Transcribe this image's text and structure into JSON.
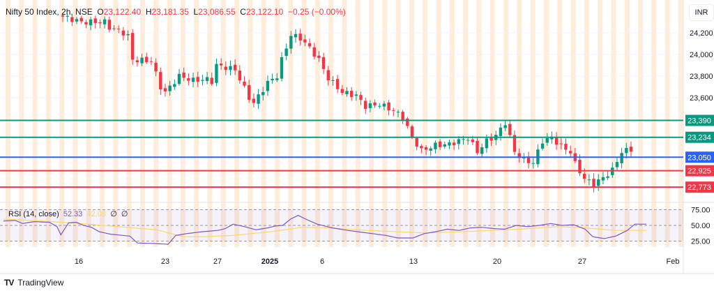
{
  "header": {
    "symbol": "Nifty 50 Index, 2h, NSE",
    "o_label": "O",
    "o": "23,122.40",
    "h_label": "H",
    "h": "23,181.35",
    "l_label": "L",
    "l": "23,086.55",
    "c_label": "C",
    "c": "23,122.10",
    "change": "−0.25 (−0.00%)"
  },
  "currency": "INR",
  "rsi": {
    "label": "RSI (14, close)",
    "value": "52.33",
    "ma": "42.08",
    "extra1": "∅",
    "extra2": "∅"
  },
  "branding": "TradingView",
  "colors": {
    "up": "#089981",
    "down": "#f23645",
    "green_line": "#089981",
    "blue_line": "#2962ff",
    "red_line": "#f23645",
    "rsi": "#7e57c2",
    "rsi_ma": "#f7d96a",
    "stripe": "#fde7cf"
  },
  "chart_data": {
    "type": "candlestick",
    "price_ylim": [
      22700,
      24330
    ],
    "price_ticks": [
      "24,200",
      "24,000",
      "23,800",
      "23,600"
    ],
    "price_tick_values": [
      24200,
      24000,
      23800,
      23600
    ],
    "levels": [
      {
        "value": 23390,
        "label": "23,390",
        "color": "#089981"
      },
      {
        "value": 23234,
        "label": "23,234",
        "color": "#089981"
      },
      {
        "value": 23050,
        "label": "23,050",
        "color": "#2962ff"
      },
      {
        "value": 22925,
        "label": "22,925",
        "color": "#f23645"
      },
      {
        "value": 22773,
        "label": "22,773",
        "color": "#f23645"
      }
    ],
    "x_ticks": [
      "16",
      "23",
      "27",
      "2025",
      "6",
      "13",
      "20",
      "27",
      "Feb"
    ],
    "price_path_approx": [
      [
        0,
        24350
      ],
      [
        4,
        24300
      ],
      [
        9,
        24300
      ],
      [
        10,
        24250
      ],
      [
        13,
        24200
      ],
      [
        14,
        24170
      ],
      [
        15,
        23950
      ],
      [
        19,
        23940
      ],
      [
        21,
        23700
      ],
      [
        22,
        23650
      ],
      [
        25,
        23800
      ],
      [
        28,
        23760
      ],
      [
        31,
        23770
      ],
      [
        32,
        23750
      ],
      [
        33,
        23900
      ],
      [
        37,
        23860
      ],
      [
        40,
        23600
      ],
      [
        41,
        23550
      ],
      [
        44,
        23740
      ],
      [
        46,
        23800
      ],
      [
        47,
        23950
      ],
      [
        49,
        24180
      ],
      [
        51,
        24150
      ],
      [
        53,
        24060
      ],
      [
        55,
        23950
      ],
      [
        57,
        23780
      ],
      [
        60,
        23650
      ],
      [
        63,
        23620
      ],
      [
        65,
        23520
      ],
      [
        68,
        23540
      ],
      [
        71,
        23480
      ],
      [
        73,
        23420
      ],
      [
        75,
        23230
      ],
      [
        77,
        23110
      ],
      [
        80,
        23160
      ],
      [
        83,
        23170
      ],
      [
        85,
        23200
      ],
      [
        87,
        23230
      ],
      [
        89,
        23100
      ],
      [
        91,
        23200
      ],
      [
        93,
        23250
      ],
      [
        95,
        23370
      ],
      [
        97,
        23100
      ],
      [
        99,
        23020
      ],
      [
        101,
        23000
      ],
      [
        103,
        23200
      ],
      [
        105,
        23230
      ],
      [
        107,
        23150
      ],
      [
        109,
        23100
      ],
      [
        110,
        22990
      ],
      [
        112,
        22850
      ],
      [
        114,
        22800
      ],
      [
        116,
        22860
      ],
      [
        118,
        22930
      ],
      [
        120,
        23100
      ],
      [
        122,
        23122
      ]
    ],
    "rsi_ylim": [
      15,
      85
    ],
    "rsi_ticks": [
      "75.00",
      "50.00",
      "25.00"
    ],
    "rsi_tick_values": [
      75,
      50,
      25
    ],
    "rsi_path_approx": [
      [
        0,
        57
      ],
      [
        3,
        58
      ],
      [
        5,
        53
      ],
      [
        8,
        56
      ],
      [
        12,
        55
      ],
      [
        14,
        48
      ],
      [
        15,
        35
      ],
      [
        17,
        54
      ],
      [
        19,
        55
      ],
      [
        21,
        50
      ],
      [
        23,
        47
      ],
      [
        25,
        40
      ],
      [
        28,
        36
      ],
      [
        33,
        33
      ],
      [
        35,
        22
      ],
      [
        40,
        21
      ],
      [
        43,
        20
      ],
      [
        45,
        34
      ],
      [
        48,
        37
      ],
      [
        52,
        40
      ],
      [
        56,
        42
      ],
      [
        58,
        45
      ],
      [
        60,
        52
      ],
      [
        63,
        48
      ],
      [
        66,
        43
      ],
      [
        69,
        46
      ],
      [
        71,
        49
      ],
      [
        73,
        50
      ],
      [
        75,
        60
      ],
      [
        77,
        66
      ],
      [
        79,
        60
      ],
      [
        82,
        52
      ],
      [
        86,
        46
      ],
      [
        90,
        42
      ],
      [
        95,
        38
      ],
      [
        100,
        34
      ],
      [
        103,
        30
      ],
      [
        107,
        30
      ],
      [
        110,
        37
      ],
      [
        113,
        40
      ],
      [
        116,
        44
      ],
      [
        119,
        42
      ],
      [
        122,
        46
      ],
      [
        125,
        47
      ],
      [
        128,
        45
      ],
      [
        131,
        44
      ],
      [
        134,
        50
      ],
      [
        137,
        48
      ],
      [
        140,
        50
      ],
      [
        143,
        53
      ],
      [
        146,
        50
      ],
      [
        149,
        51
      ],
      [
        152,
        44
      ],
      [
        154,
        32
      ],
      [
        157,
        29
      ],
      [
        160,
        33
      ],
      [
        163,
        42
      ],
      [
        165,
        52
      ],
      [
        168,
        52
      ]
    ],
    "rsi_ma_path_approx": [
      [
        0,
        60
      ],
      [
        10,
        57
      ],
      [
        20,
        53
      ],
      [
        30,
        48
      ],
      [
        40,
        43
      ],
      [
        47,
        32
      ],
      [
        52,
        32
      ],
      [
        60,
        34
      ],
      [
        70,
        40
      ],
      [
        78,
        47
      ],
      [
        85,
        46
      ],
      [
        95,
        42
      ],
      [
        110,
        38
      ],
      [
        120,
        40
      ],
      [
        135,
        44
      ],
      [
        145,
        48
      ],
      [
        152,
        46
      ],
      [
        160,
        42
      ],
      [
        168,
        42
      ]
    ]
  }
}
